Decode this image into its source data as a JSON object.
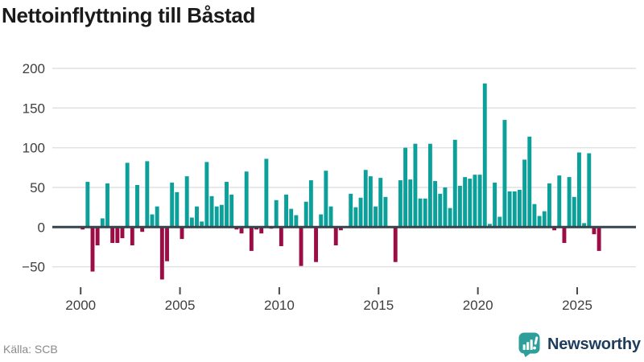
{
  "title": "Nettoinflyttning till Båstad",
  "source": "Källa: SCB",
  "brand": {
    "name": "Newsworthy"
  },
  "colors": {
    "positive": "#0BA09A",
    "negative": "#9C0D46",
    "grid": "#E1E1E1",
    "axis_line": "#39434B",
    "tick_label": "#3F3F3F",
    "tick_mark": "#4A4A4A",
    "title": "#1B1B1B",
    "source": "#8A8A8A",
    "brand_teal": "#2D9E99",
    "brand_navy": "#1E3C5B"
  },
  "chart_data": {
    "type": "bar",
    "title": "Nettoinflyttning till Båstad",
    "frequency": "quarterly",
    "xlabel": "",
    "ylabel": "",
    "x_ticks": [
      2000,
      2005,
      2010,
      2015,
      2020,
      2025
    ],
    "y_ticks": [
      -50,
      0,
      50,
      100,
      150,
      200
    ],
    "ylim": [
      -75,
      205
    ],
    "grid": true,
    "legend": false,
    "points": [
      {
        "q": "2000Q1",
        "v": -3
      },
      {
        "q": "2000Q2",
        "v": 57
      },
      {
        "q": "2000Q3",
        "v": -56
      },
      {
        "q": "2000Q4",
        "v": -23
      },
      {
        "q": "2001Q1",
        "v": 11
      },
      {
        "q": "2001Q2",
        "v": 55
      },
      {
        "q": "2001Q3",
        "v": -20
      },
      {
        "q": "2001Q4",
        "v": -20
      },
      {
        "q": "2002Q1",
        "v": -14
      },
      {
        "q": "2002Q2",
        "v": 81
      },
      {
        "q": "2002Q3",
        "v": -23
      },
      {
        "q": "2002Q4",
        "v": 53
      },
      {
        "q": "2003Q1",
        "v": -6
      },
      {
        "q": "2003Q2",
        "v": 83
      },
      {
        "q": "2003Q3",
        "v": 16
      },
      {
        "q": "2003Q4",
        "v": 26
      },
      {
        "q": "2004Q1",
        "v": -66
      },
      {
        "q": "2004Q2",
        "v": -43
      },
      {
        "q": "2004Q3",
        "v": 56
      },
      {
        "q": "2004Q4",
        "v": 44
      },
      {
        "q": "2005Q1",
        "v": -15
      },
      {
        "q": "2005Q2",
        "v": 64
      },
      {
        "q": "2005Q3",
        "v": 12
      },
      {
        "q": "2005Q4",
        "v": 26
      },
      {
        "q": "2006Q1",
        "v": 7
      },
      {
        "q": "2006Q2",
        "v": 82
      },
      {
        "q": "2006Q3",
        "v": 39
      },
      {
        "q": "2006Q4",
        "v": 26
      },
      {
        "q": "2007Q1",
        "v": 28
      },
      {
        "q": "2007Q2",
        "v": 57
      },
      {
        "q": "2007Q3",
        "v": 41
      },
      {
        "q": "2007Q4",
        "v": -3
      },
      {
        "q": "2008Q1",
        "v": -8
      },
      {
        "q": "2008Q2",
        "v": 70
      },
      {
        "q": "2008Q3",
        "v": -30
      },
      {
        "q": "2008Q4",
        "v": -3
      },
      {
        "q": "2009Q1",
        "v": -8
      },
      {
        "q": "2009Q2",
        "v": 86
      },
      {
        "q": "2009Q3",
        "v": -2
      },
      {
        "q": "2009Q4",
        "v": 34
      },
      {
        "q": "2010Q1",
        "v": -24
      },
      {
        "q": "2010Q2",
        "v": 41
      },
      {
        "q": "2010Q3",
        "v": 23
      },
      {
        "q": "2010Q4",
        "v": 15
      },
      {
        "q": "2011Q1",
        "v": -49
      },
      {
        "q": "2011Q2",
        "v": 32
      },
      {
        "q": "2011Q3",
        "v": 59
      },
      {
        "q": "2011Q4",
        "v": -44
      },
      {
        "q": "2012Q1",
        "v": 16
      },
      {
        "q": "2012Q2",
        "v": 71
      },
      {
        "q": "2012Q3",
        "v": 26
      },
      {
        "q": "2012Q4",
        "v": -23
      },
      {
        "q": "2013Q1",
        "v": -4
      },
      {
        "q": "2013Q2",
        "v": 0
      },
      {
        "q": "2013Q3",
        "v": 42
      },
      {
        "q": "2013Q4",
        "v": 25
      },
      {
        "q": "2014Q1",
        "v": 37
      },
      {
        "q": "2014Q2",
        "v": 72
      },
      {
        "q": "2014Q3",
        "v": 64
      },
      {
        "q": "2014Q4",
        "v": 26
      },
      {
        "q": "2015Q1",
        "v": 62
      },
      {
        "q": "2015Q2",
        "v": 38
      },
      {
        "q": "2015Q3",
        "v": 0
      },
      {
        "q": "2015Q4",
        "v": -44
      },
      {
        "q": "2016Q1",
        "v": 59
      },
      {
        "q": "2016Q2",
        "v": 100
      },
      {
        "q": "2016Q3",
        "v": 60
      },
      {
        "q": "2016Q4",
        "v": 105
      },
      {
        "q": "2017Q1",
        "v": 36
      },
      {
        "q": "2017Q2",
        "v": 36
      },
      {
        "q": "2017Q3",
        "v": 105
      },
      {
        "q": "2017Q4",
        "v": 58
      },
      {
        "q": "2018Q1",
        "v": 42
      },
      {
        "q": "2018Q2",
        "v": 50
      },
      {
        "q": "2018Q3",
        "v": 24
      },
      {
        "q": "2018Q4",
        "v": 110
      },
      {
        "q": "2019Q1",
        "v": 52
      },
      {
        "q": "2019Q2",
        "v": 63
      },
      {
        "q": "2019Q3",
        "v": 61
      },
      {
        "q": "2019Q4",
        "v": 66
      },
      {
        "q": "2020Q1",
        "v": 66
      },
      {
        "q": "2020Q2",
        "v": 181
      },
      {
        "q": "2020Q3",
        "v": 4
      },
      {
        "q": "2020Q4",
        "v": 56
      },
      {
        "q": "2021Q1",
        "v": 13
      },
      {
        "q": "2021Q2",
        "v": 135
      },
      {
        "q": "2021Q3",
        "v": 45
      },
      {
        "q": "2021Q4",
        "v": 45
      },
      {
        "q": "2022Q1",
        "v": 47
      },
      {
        "q": "2022Q2",
        "v": 85
      },
      {
        "q": "2022Q3",
        "v": 114
      },
      {
        "q": "2022Q4",
        "v": 29
      },
      {
        "q": "2023Q1",
        "v": 14
      },
      {
        "q": "2023Q2",
        "v": 20
      },
      {
        "q": "2023Q3",
        "v": 55
      },
      {
        "q": "2023Q4",
        "v": -4
      },
      {
        "q": "2024Q1",
        "v": 65
      },
      {
        "q": "2024Q2",
        "v": -20
      },
      {
        "q": "2024Q3",
        "v": 63
      },
      {
        "q": "2024Q4",
        "v": 38
      },
      {
        "q": "2025Q1",
        "v": 94
      },
      {
        "q": "2025Q2",
        "v": 5
      },
      {
        "q": "2025Q3",
        "v": 93
      },
      {
        "q": "2025Q4",
        "v": -9
      },
      {
        "q": "2026Q1",
        "v": -30
      }
    ]
  }
}
